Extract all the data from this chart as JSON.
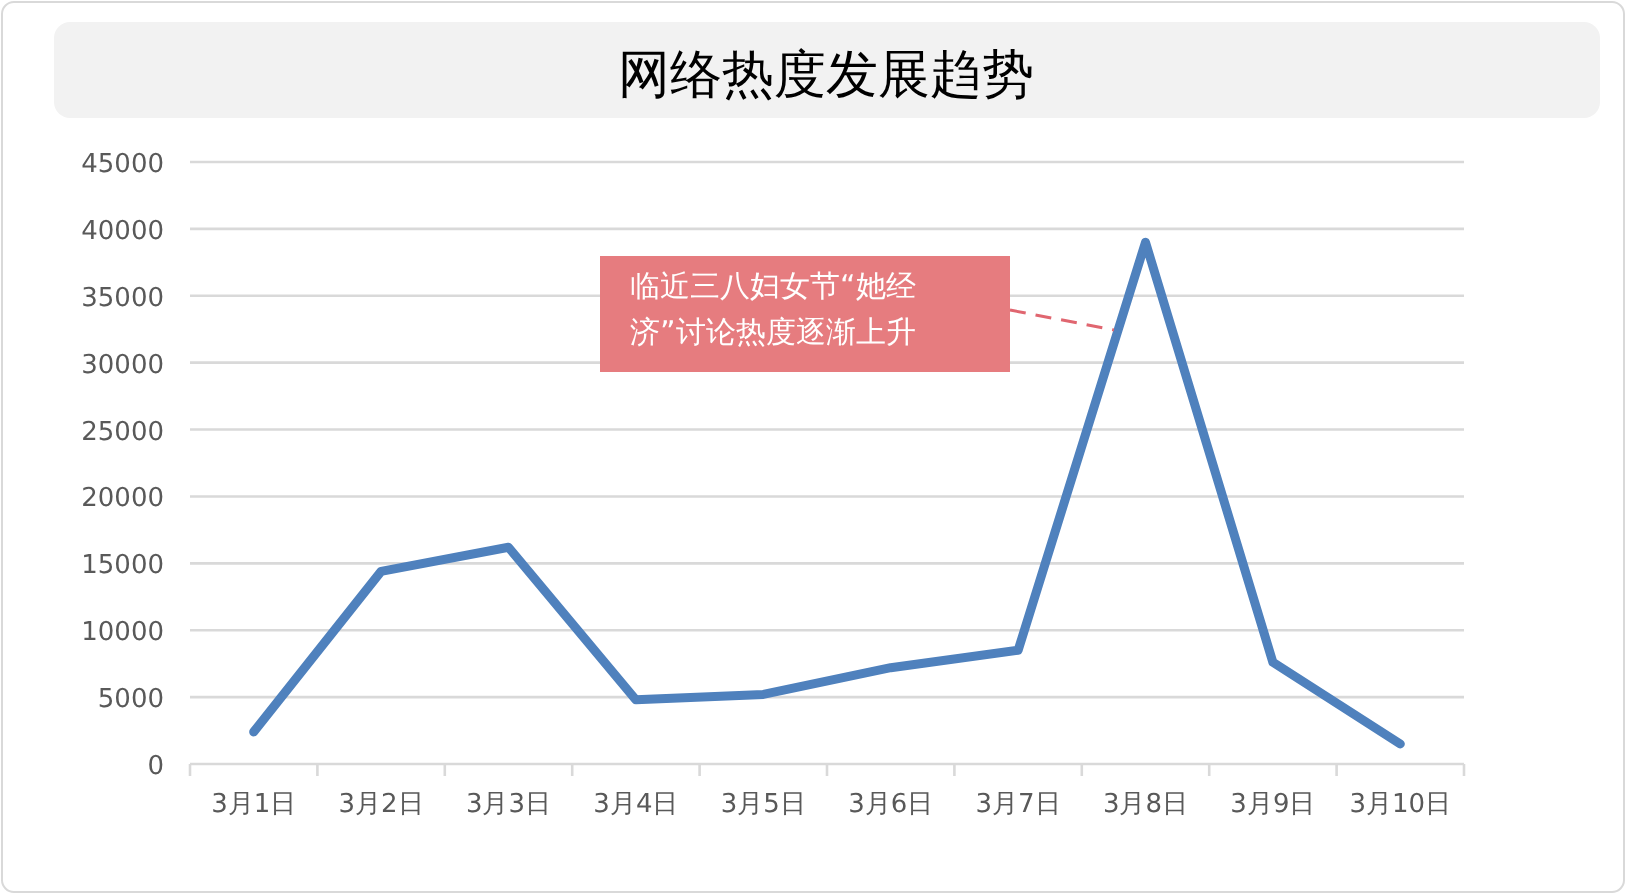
{
  "chart_data": {
    "type": "line",
    "title": "网络热度发展趋势",
    "categories": [
      "3月1日",
      "3月2日",
      "3月3日",
      "3月4日",
      "3月5日",
      "3月6日",
      "3月7日",
      "3月8日",
      "3月9日",
      "3月10日"
    ],
    "values": [
      2400,
      14400,
      16200,
      4800,
      5200,
      7200,
      8500,
      39000,
      7600,
      1500
    ],
    "color": "#4f81bd",
    "ylim": [
      0,
      45000
    ],
    "yticks": [
      0,
      5000,
      10000,
      15000,
      20000,
      25000,
      30000,
      35000,
      40000,
      45000
    ],
    "grid": "y",
    "annotations": [
      "临近三八妇女节“她经济”讨论热度逐渐上升"
    ]
  }
}
